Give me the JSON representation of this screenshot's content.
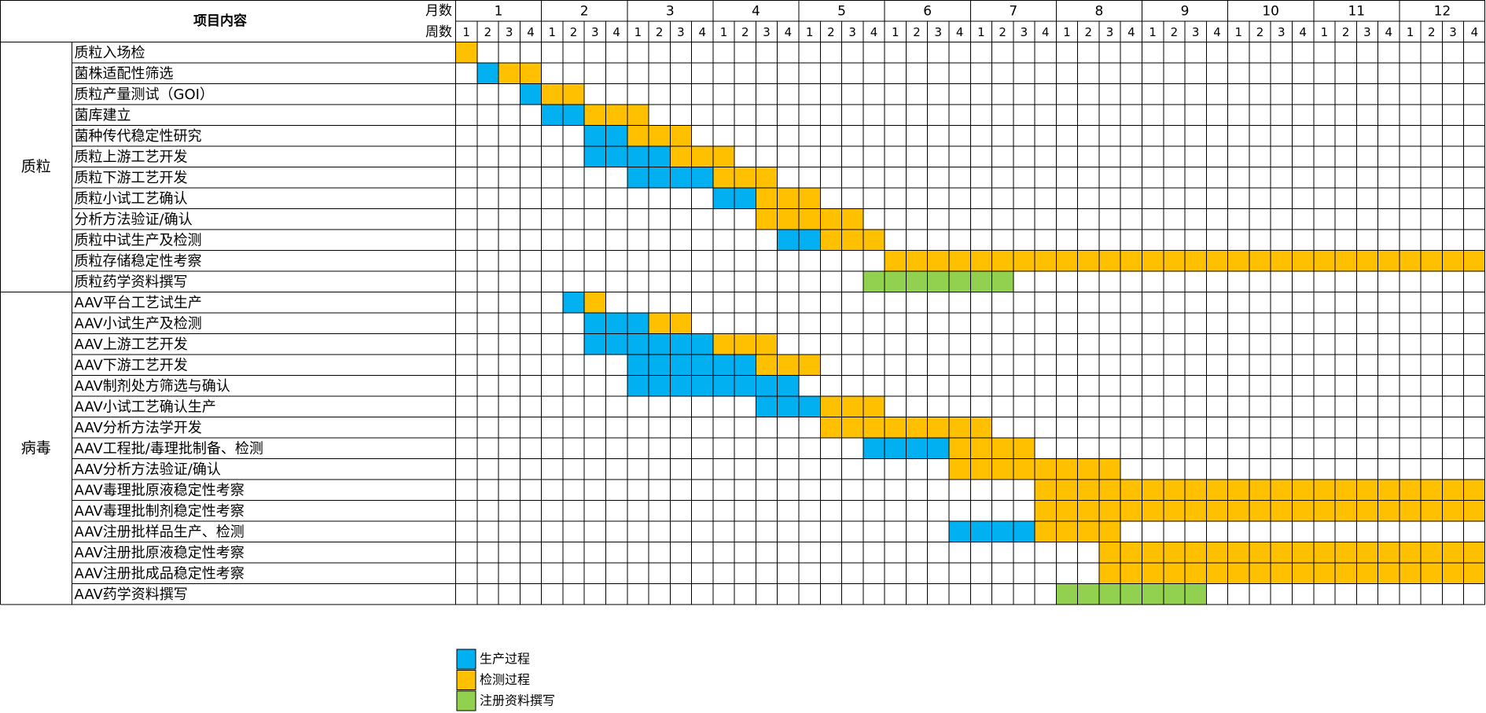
{
  "chart_data": {
    "type": "gantt",
    "header": {
      "item": "项目内容",
      "month": "月数",
      "week": "周数"
    },
    "months": [
      "1",
      "2",
      "3",
      "4",
      "5",
      "6",
      "7",
      "8",
      "9",
      "10",
      "11",
      "12"
    ],
    "weeks": [
      "1",
      "2",
      "3",
      "4"
    ],
    "phases": [
      {
        "name": "生产过程",
        "color": "#00b0f0"
      },
      {
        "name": "检测过程",
        "color": "#ffc000"
      },
      {
        "name": "注册资料撰写",
        "color": "#92d050"
      }
    ],
    "groups": [
      {
        "name": "质粒",
        "tasks": [
          {
            "name": "质粒入场检",
            "segments": [
              {
                "phase": 1,
                "start_month": 1,
                "start_week": 1,
                "weeks": 1
              }
            ]
          },
          {
            "name": "菌株适配性筛选",
            "segments": [
              {
                "phase": 0,
                "start_month": 1,
                "start_week": 2,
                "weeks": 1
              },
              {
                "phase": 1,
                "start_month": 1,
                "start_week": 3,
                "weeks": 2
              }
            ]
          },
          {
            "name": "质粒产量测试（GOI）",
            "segments": [
              {
                "phase": 0,
                "start_month": 1,
                "start_week": 4,
                "weeks": 1
              },
              {
                "phase": 1,
                "start_month": 2,
                "start_week": 1,
                "weeks": 2
              }
            ]
          },
          {
            "name": "菌库建立",
            "segments": [
              {
                "phase": 0,
                "start_month": 2,
                "start_week": 1,
                "weeks": 2
              },
              {
                "phase": 1,
                "start_month": 2,
                "start_week": 3,
                "weeks": 3
              }
            ]
          },
          {
            "name": "菌种传代稳定性研究",
            "segments": [
              {
                "phase": 0,
                "start_month": 2,
                "start_week": 3,
                "weeks": 2
              },
              {
                "phase": 1,
                "start_month": 3,
                "start_week": 1,
                "weeks": 3
              }
            ]
          },
          {
            "name": "质粒上游工艺开发",
            "segments": [
              {
                "phase": 0,
                "start_month": 2,
                "start_week": 3,
                "weeks": 4
              },
              {
                "phase": 1,
                "start_month": 3,
                "start_week": 3,
                "weeks": 3
              }
            ]
          },
          {
            "name": "质粒下游工艺开发",
            "segments": [
              {
                "phase": 0,
                "start_month": 3,
                "start_week": 1,
                "weeks": 4
              },
              {
                "phase": 1,
                "start_month": 4,
                "start_week": 1,
                "weeks": 3
              }
            ]
          },
          {
            "name": "质粒小试工艺确认",
            "segments": [
              {
                "phase": 0,
                "start_month": 4,
                "start_week": 1,
                "weeks": 2
              },
              {
                "phase": 1,
                "start_month": 4,
                "start_week": 3,
                "weeks": 3
              }
            ]
          },
          {
            "name": "分析方法验证/确认",
            "segments": [
              {
                "phase": 1,
                "start_month": 4,
                "start_week": 3,
                "weeks": 5
              }
            ]
          },
          {
            "name": "质粒中试生产及检测",
            "segments": [
              {
                "phase": 0,
                "start_month": 4,
                "start_week": 4,
                "weeks": 2
              },
              {
                "phase": 1,
                "start_month": 5,
                "start_week": 2,
                "weeks": 3
              }
            ]
          },
          {
            "name": "质粒存储稳定性考察",
            "segments": [
              {
                "phase": 1,
                "start_month": 6,
                "start_week": 1,
                "weeks": 28
              }
            ]
          },
          {
            "name": "质粒药学资料撰写",
            "segments": [
              {
                "phase": 2,
                "start_month": 5,
                "start_week": 4,
                "weeks": 7
              }
            ]
          }
        ]
      },
      {
        "name": "病毒",
        "tasks": [
          {
            "name": "AAV平台工艺试生产",
            "segments": [
              {
                "phase": 0,
                "start_month": 2,
                "start_week": 2,
                "weeks": 1
              },
              {
                "phase": 1,
                "start_month": 2,
                "start_week": 3,
                "weeks": 1
              }
            ]
          },
          {
            "name": "AAV小试生产及检测",
            "segments": [
              {
                "phase": 0,
                "start_month": 2,
                "start_week": 3,
                "weeks": 3
              },
              {
                "phase": 1,
                "start_month": 3,
                "start_week": 2,
                "weeks": 2
              }
            ]
          },
          {
            "name": "AAV上游工艺开发",
            "segments": [
              {
                "phase": 0,
                "start_month": 2,
                "start_week": 3,
                "weeks": 6
              },
              {
                "phase": 1,
                "start_month": 4,
                "start_week": 1,
                "weeks": 3
              }
            ]
          },
          {
            "name": "AAV下游工艺开发",
            "segments": [
              {
                "phase": 0,
                "start_month": 3,
                "start_week": 1,
                "weeks": 6
              },
              {
                "phase": 1,
                "start_month": 4,
                "start_week": 3,
                "weeks": 3
              }
            ]
          },
          {
            "name": "AAV制剂处方筛选与确认",
            "segments": [
              {
                "phase": 0,
                "start_month": 3,
                "start_week": 1,
                "weeks": 8
              }
            ]
          },
          {
            "name": "AAV小试工艺确认生产",
            "segments": [
              {
                "phase": 0,
                "start_month": 4,
                "start_week": 3,
                "weeks": 3
              },
              {
                "phase": 1,
                "start_month": 5,
                "start_week": 2,
                "weeks": 3
              }
            ]
          },
          {
            "name": "AAV分析方法学开发",
            "segments": [
              {
                "phase": 1,
                "start_month": 5,
                "start_week": 2,
                "weeks": 8
              }
            ]
          },
          {
            "name": "AAV工程批/毒理批制备、检测",
            "segments": [
              {
                "phase": 0,
                "start_month": 5,
                "start_week": 4,
                "weeks": 4
              },
              {
                "phase": 1,
                "start_month": 6,
                "start_week": 4,
                "weeks": 4
              }
            ]
          },
          {
            "name": "AAV分析方法验证/确认",
            "segments": [
              {
                "phase": 1,
                "start_month": 6,
                "start_week": 4,
                "weeks": 8
              }
            ]
          },
          {
            "name": "AAV毒理批原液稳定性考察",
            "segments": [
              {
                "phase": 1,
                "start_month": 7,
                "start_week": 4,
                "weeks": 21
              }
            ]
          },
          {
            "name": "AAV毒理批制剂稳定性考察",
            "segments": [
              {
                "phase": 1,
                "start_month": 7,
                "start_week": 4,
                "weeks": 21
              }
            ]
          },
          {
            "name": "AAV注册批样品生产、检测",
            "segments": [
              {
                "phase": 0,
                "start_month": 6,
                "start_week": 4,
                "weeks": 4
              },
              {
                "phase": 1,
                "start_month": 7,
                "start_week": 4,
                "weeks": 4
              }
            ]
          },
          {
            "name": "AAV注册批原液稳定性考察",
            "segments": [
              {
                "phase": 1,
                "start_month": 8,
                "start_week": 3,
                "weeks": 18
              }
            ]
          },
          {
            "name": "AAV注册批成品稳定性考察",
            "segments": [
              {
                "phase": 1,
                "start_month": 8,
                "start_week": 3,
                "weeks": 18
              }
            ]
          },
          {
            "name": "AAV药学资料撰写",
            "segments": [
              {
                "phase": 2,
                "start_month": 8,
                "start_week": 1,
                "weeks": 7
              }
            ]
          }
        ]
      }
    ]
  }
}
